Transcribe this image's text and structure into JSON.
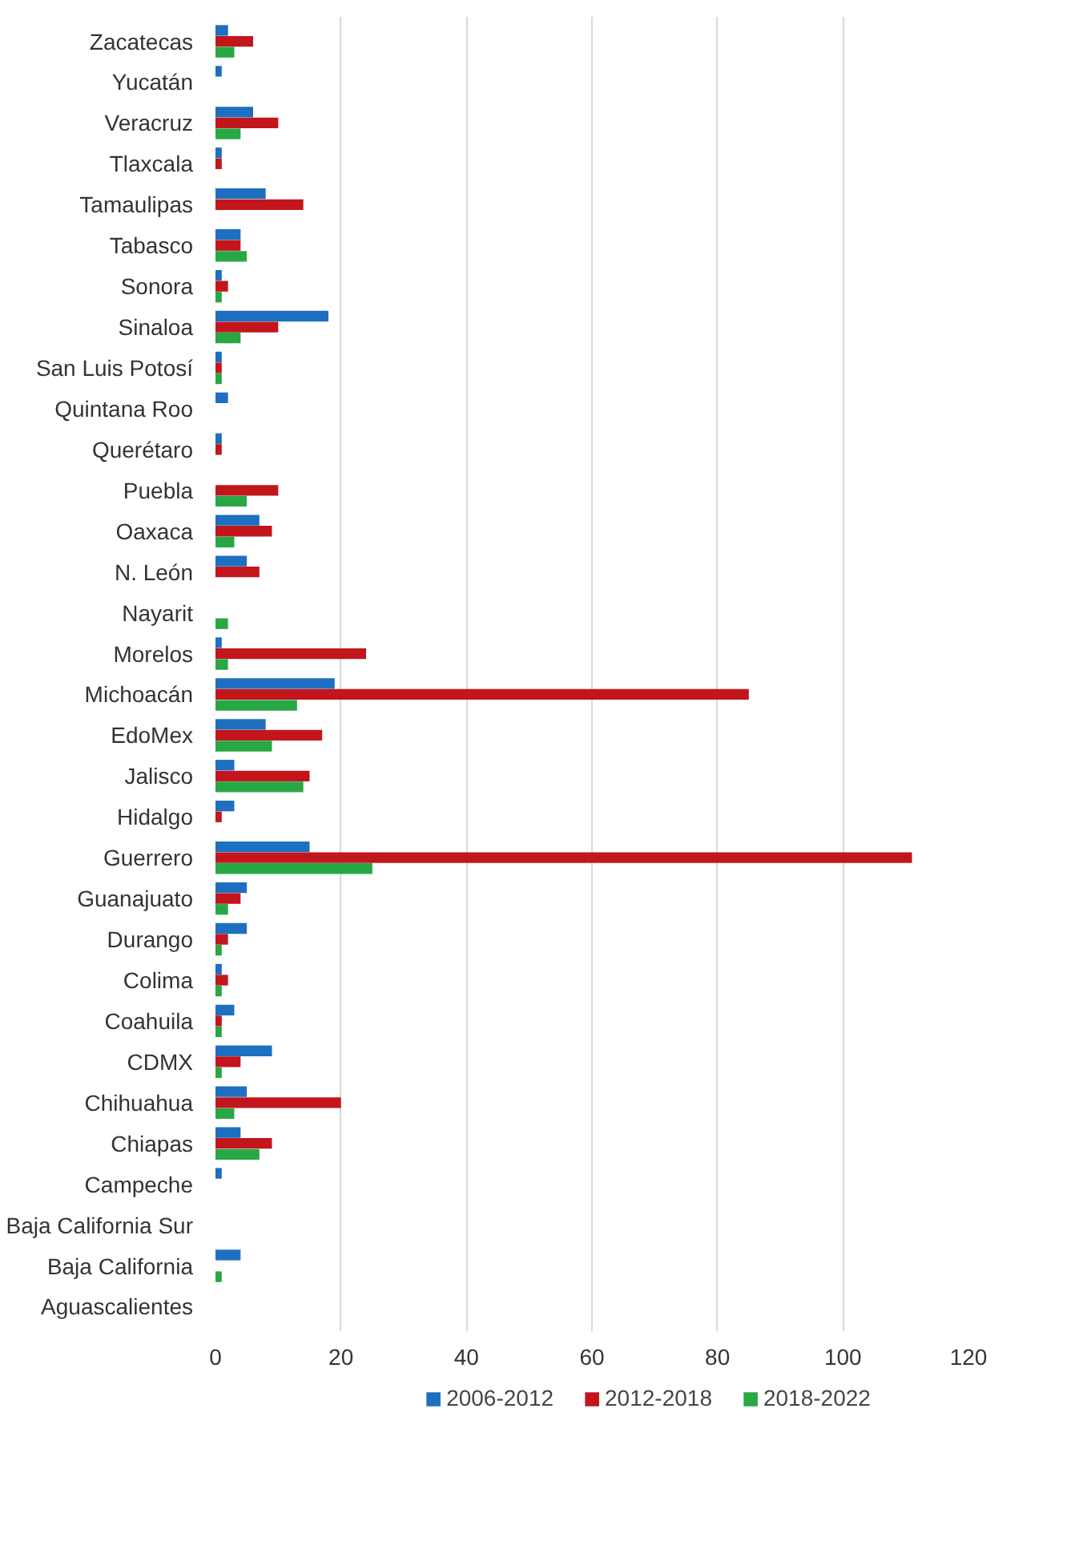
{
  "chart_data": {
    "type": "bar",
    "orientation": "horizontal",
    "categories": [
      "Zacatecas",
      "Yucatán",
      "Veracruz",
      "Tlaxcala",
      "Tamaulipas",
      "Tabasco",
      "Sonora",
      "Sinaloa",
      "San Luis Potosí",
      "Quintana Roo",
      "Querétaro",
      "Puebla",
      "Oaxaca",
      "N. León",
      "Nayarit",
      "Morelos",
      "Michoacán",
      "EdoMex",
      "Jalisco",
      "Hidalgo",
      "Guerrero",
      "Guanajuato",
      "Durango",
      "Colima",
      "Coahuila",
      "CDMX",
      "Chihuahua",
      "Chiapas",
      "Campeche",
      "Baja California Sur",
      "Baja California",
      "Aguascalientes"
    ],
    "series": [
      {
        "name": "2006-2012",
        "color": "#1f6fc1",
        "values": [
          2,
          1,
          6,
          1,
          8,
          4,
          1,
          18,
          1,
          2,
          1,
          0,
          7,
          5,
          0,
          1,
          19,
          8,
          3,
          3,
          15,
          5,
          5,
          1,
          3,
          9,
          5,
          4,
          1,
          0,
          4,
          0
        ]
      },
      {
        "name": "2012-2018",
        "color": "#c2161c",
        "values": [
          6,
          0,
          10,
          1,
          14,
          4,
          2,
          10,
          1,
          0,
          1,
          10,
          9,
          7,
          0,
          24,
          85,
          17,
          15,
          1,
          111,
          4,
          2,
          2,
          1,
          4,
          20,
          9,
          0,
          0,
          0,
          0
        ]
      },
      {
        "name": "2018-2022",
        "color": "#28a745",
        "values": [
          3,
          0,
          4,
          0,
          0,
          5,
          1,
          4,
          1,
          0,
          0,
          5,
          3,
          0,
          2,
          2,
          13,
          9,
          14,
          0,
          25,
          2,
          1,
          1,
          1,
          1,
          3,
          7,
          0,
          0,
          1,
          0
        ]
      }
    ],
    "xlim": [
      0,
      120
    ],
    "xticks": [
      0,
      20,
      40,
      60,
      80,
      100,
      120
    ],
    "grid": "x",
    "legend": "bottom"
  }
}
